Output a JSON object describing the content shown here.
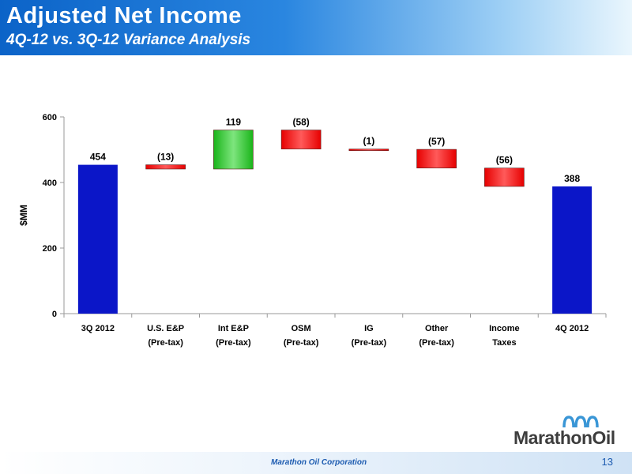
{
  "header": {
    "title": "Adjusted Net Income",
    "subtitle": "4Q-12 vs. 3Q-12 Variance Analysis"
  },
  "chart_data": {
    "type": "bar",
    "subtype": "waterfall",
    "categories": [
      [
        "3Q 2012"
      ],
      [
        "U.S. E&P",
        "(Pre-tax)"
      ],
      [
        "Int E&P",
        "(Pre-tax)"
      ],
      [
        "OSM",
        "(Pre-tax)"
      ],
      [
        "IG",
        "(Pre-tax)"
      ],
      [
        "Other",
        "(Pre-tax)"
      ],
      [
        "Income",
        "Taxes"
      ],
      [
        "4Q 2012"
      ]
    ],
    "values": [
      454,
      -13,
      119,
      -58,
      -1,
      -57,
      -56,
      388
    ],
    "kinds": [
      "total",
      "delta",
      "delta",
      "delta",
      "delta",
      "delta",
      "delta",
      "total"
    ],
    "data_labels": [
      "454",
      "(13)",
      "119",
      "(58)",
      "(1)",
      "(57)",
      "(56)",
      "388"
    ],
    "ylabel": "$MM",
    "ylim": [
      0,
      600
    ],
    "yticks": [
      0,
      200,
      400,
      600
    ],
    "colors": {
      "total": "#0b16c8",
      "increase": "#19b419",
      "decrease": "#e60000"
    }
  },
  "footer": {
    "company": "Marathon Oil Corporation",
    "page_number": "13"
  },
  "logo": {
    "text": "MarathonOil",
    "mark": "Marathon Oil logo"
  }
}
